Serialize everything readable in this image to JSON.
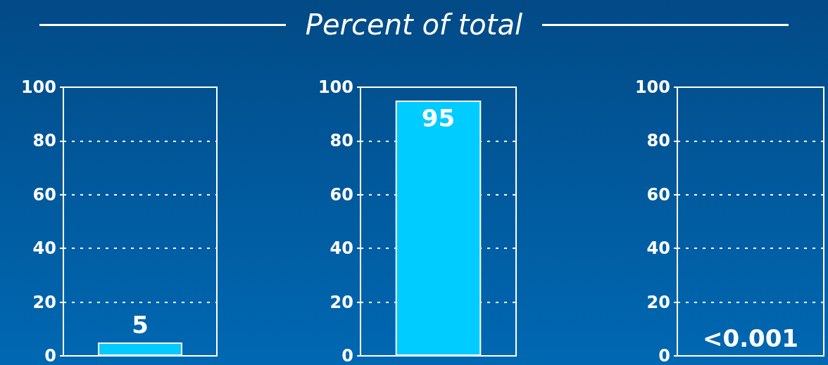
{
  "chart_data": [
    {
      "type": "bar",
      "categories": [
        null
      ],
      "values": [
        5
      ],
      "value_labels": [
        "5"
      ],
      "color": "#00ccff",
      "ylim": [
        0,
        100
      ],
      "yticks": [
        0,
        20,
        40,
        60,
        80,
        100
      ],
      "grid": "y",
      "tick_labels": "y"
    },
    {
      "type": "bar",
      "title": "Percent of total",
      "categories": [
        null
      ],
      "values": [
        95
      ],
      "value_labels": [
        "95"
      ],
      "color": "#00ccff",
      "ylim": [
        0,
        100
      ],
      "yticks": [
        0,
        20,
        40,
        60,
        80,
        100
      ],
      "grid": "y",
      "tick_labels": "y"
    },
    {
      "type": "bar",
      "categories": [
        null
      ],
      "values": [
        0.001
      ],
      "value_labels": [
        "<0.001"
      ],
      "color": "#00ccff",
      "ylim": [
        0,
        100
      ],
      "yticks": [
        0,
        20,
        40,
        60,
        80,
        100
      ],
      "grid": "y",
      "tick_labels": "y"
    }
  ]
}
